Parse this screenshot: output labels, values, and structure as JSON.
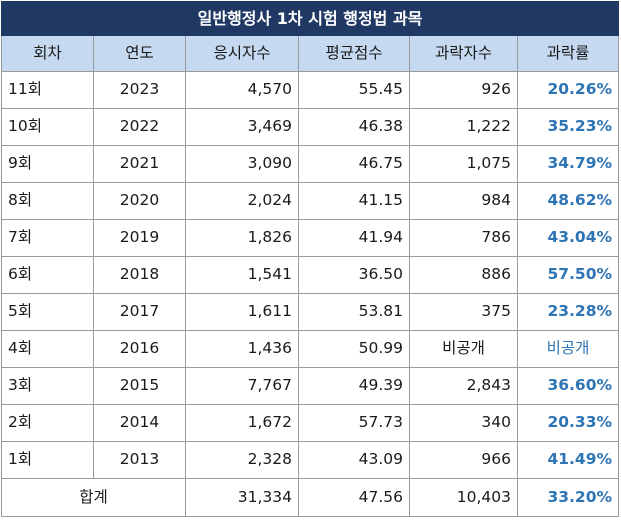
{
  "title": "일반행정사 1차 시험 행정법 과목",
  "headers": [
    "회차",
    "연도",
    "응시자수",
    "평균점수",
    "과락자수",
    "과락률"
  ],
  "rows": [
    {
      "round": "11회",
      "year": "2023",
      "examinees": "4,570",
      "avg": "55.45",
      "fail": "926",
      "rate": "20.26%"
    },
    {
      "round": "10회",
      "year": "2022",
      "examinees": "3,469",
      "avg": "46.38",
      "fail": "1,222",
      "rate": "35.23%"
    },
    {
      "round": "9회",
      "year": "2021",
      "examinees": "3,090",
      "avg": "46.75",
      "fail": "1,075",
      "rate": "34.79%"
    },
    {
      "round": "8회",
      "year": "2020",
      "examinees": "2,024",
      "avg": "41.15",
      "fail": "984",
      "rate": "48.62%"
    },
    {
      "round": "7회",
      "year": "2019",
      "examinees": "1,826",
      "avg": "41.94",
      "fail": "786",
      "rate": "43.04%"
    },
    {
      "round": "6회",
      "year": "2018",
      "examinees": "1,541",
      "avg": "36.50",
      "fail": "886",
      "rate": "57.50%"
    },
    {
      "round": "5회",
      "year": "2017",
      "examinees": "1,611",
      "avg": "53.81",
      "fail": "375",
      "rate": "23.28%"
    },
    {
      "round": "4회",
      "year": "2016",
      "examinees": "1,436",
      "avg": "50.99",
      "fail": "비공개",
      "rate": "비공개"
    },
    {
      "round": "3회",
      "year": "2015",
      "examinees": "7,767",
      "avg": "49.39",
      "fail": "2,843",
      "rate": "36.60%"
    },
    {
      "round": "2회",
      "year": "2014",
      "examinees": "1,672",
      "avg": "57.73",
      "fail": "340",
      "rate": "20.33%"
    },
    {
      "round": "1회",
      "year": "2013",
      "examinees": "2,328",
      "avg": "43.09",
      "fail": "966",
      "rate": "41.49%"
    }
  ],
  "total": {
    "label": "합계",
    "examinees": "31,334",
    "avg": "47.56",
    "fail": "10,403",
    "rate": "33.20%"
  },
  "colors": {
    "title_bg": "#1f3864",
    "header_bg": "#c5d9f1",
    "rate_text": "#2e75b6",
    "grid": "#9a9a9a"
  }
}
